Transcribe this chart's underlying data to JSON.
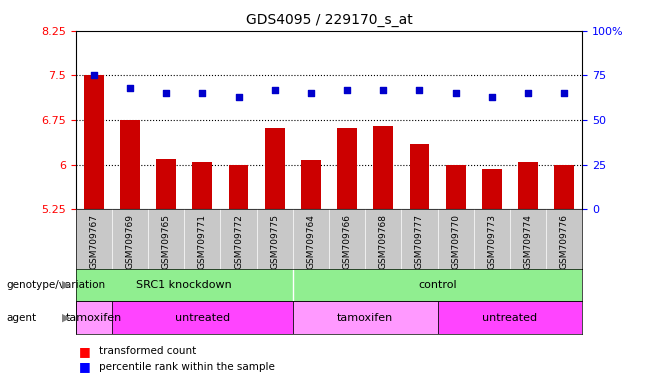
{
  "title": "GDS4095 / 229170_s_at",
  "samples": [
    "GSM709767",
    "GSM709769",
    "GSM709765",
    "GSM709771",
    "GSM709772",
    "GSM709775",
    "GSM709764",
    "GSM709766",
    "GSM709768",
    "GSM709777",
    "GSM709770",
    "GSM709773",
    "GSM709774",
    "GSM709776"
  ],
  "bar_values": [
    7.5,
    6.75,
    6.1,
    6.05,
    6.0,
    6.62,
    6.07,
    6.62,
    6.65,
    6.35,
    6.0,
    5.93,
    6.05,
    6.0
  ],
  "percentile_values": [
    75,
    68,
    65,
    65,
    63,
    67,
    65,
    67,
    67,
    67,
    65,
    63,
    65,
    65
  ],
  "ylim_left": [
    5.25,
    8.25
  ],
  "ylim_right": [
    0,
    100
  ],
  "yticks_left": [
    5.25,
    6.0,
    6.75,
    7.5,
    8.25
  ],
  "yticks_right": [
    0,
    25,
    50,
    75,
    100
  ],
  "ytick_labels_left": [
    "5.25",
    "6",
    "6.75",
    "7.5",
    "8.25"
  ],
  "ytick_labels_right": [
    "0",
    "25",
    "50",
    "75",
    "100%"
  ],
  "hlines": [
    6.0,
    6.75,
    7.5
  ],
  "bar_color": "#cc0000",
  "dot_color": "#0000cc",
  "genotype_groups": [
    {
      "label": "SRC1 knockdown",
      "start": 0,
      "end": 6
    },
    {
      "label": "control",
      "start": 6,
      "end": 14
    }
  ],
  "agent_layout": [
    {
      "label": "tamoxifen",
      "start": 0,
      "end": 1,
      "color": "#FF99FF"
    },
    {
      "label": "untreated",
      "start": 1,
      "end": 6,
      "color": "#FF44FF"
    },
    {
      "label": "tamoxifen",
      "start": 6,
      "end": 10,
      "color": "#FF99FF"
    },
    {
      "label": "untreated",
      "start": 10,
      "end": 14,
      "color": "#FF44FF"
    }
  ],
  "genotype_color": "#90EE90",
  "xtick_bg": "#C8C8C8",
  "background_color": "#ffffff",
  "legend_items": [
    {
      "label": "transformed count",
      "color": "#cc0000"
    },
    {
      "label": "percentile rank within the sample",
      "color": "#0000cc"
    }
  ]
}
